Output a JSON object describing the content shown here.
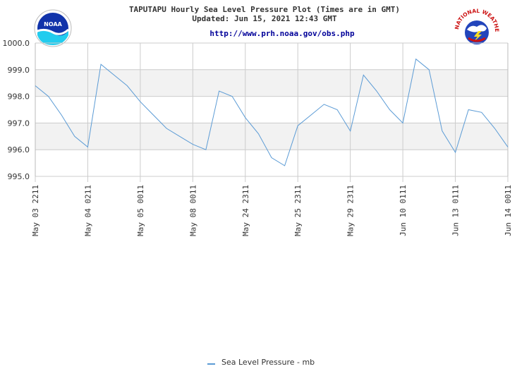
{
  "header": {
    "title": "TAPUTAPU Hourly Sea Level Pressure Plot (Times are in GMT)",
    "updated": "Updated: Jun 15, 2021 12:43 GMT",
    "url": "http://www.prh.noaa.gov/obs.php"
  },
  "logos": {
    "left": {
      "text": "NOAA",
      "icon": "noaa-logo"
    },
    "right": {
      "text": "NATIONAL WEATHER SERVICE",
      "icon": "nws-logo"
    }
  },
  "colors": {
    "series": "#5b9bd5",
    "band": "#f2f2f2",
    "grid": "#cccccc",
    "text": "#333333",
    "url": "#000099"
  },
  "chart_data": {
    "type": "line",
    "title": "TAPUTAPU Hourly Sea Level Pressure Plot (Times are in GMT)",
    "xlabel": "",
    "ylabel": "",
    "ylim": [
      995.0,
      1000.0
    ],
    "yticks": [
      "995.0",
      "996.0",
      "997.0",
      "998.0",
      "999.0",
      "1000.0"
    ],
    "x_tick_labels": [
      "May 03 2211",
      "May 04 0211",
      "May 05 0011",
      "May 08 0011",
      "May 24 2311",
      "May 25 2311",
      "May 29 2311",
      "Jun 10 0111",
      "Jun 13 0111",
      "Jun 14 0011"
    ],
    "grid": true,
    "legend_position": "bottom",
    "series": [
      {
        "name": "Sea Level Pressure - mb",
        "values": [
          998.4,
          998.0,
          997.3,
          996.5,
          996.1,
          999.2,
          998.8,
          998.4,
          997.8,
          997.3,
          996.8,
          996.5,
          996.2,
          996.0,
          998.2,
          998.0,
          997.2,
          996.6,
          995.7,
          995.4,
          996.9,
          997.3,
          997.7,
          997.5,
          996.7,
          998.8,
          998.2,
          997.5,
          997.0,
          999.4,
          999.0,
          996.7,
          995.9,
          997.5,
          997.4,
          996.8,
          996.1
        ]
      }
    ]
  }
}
